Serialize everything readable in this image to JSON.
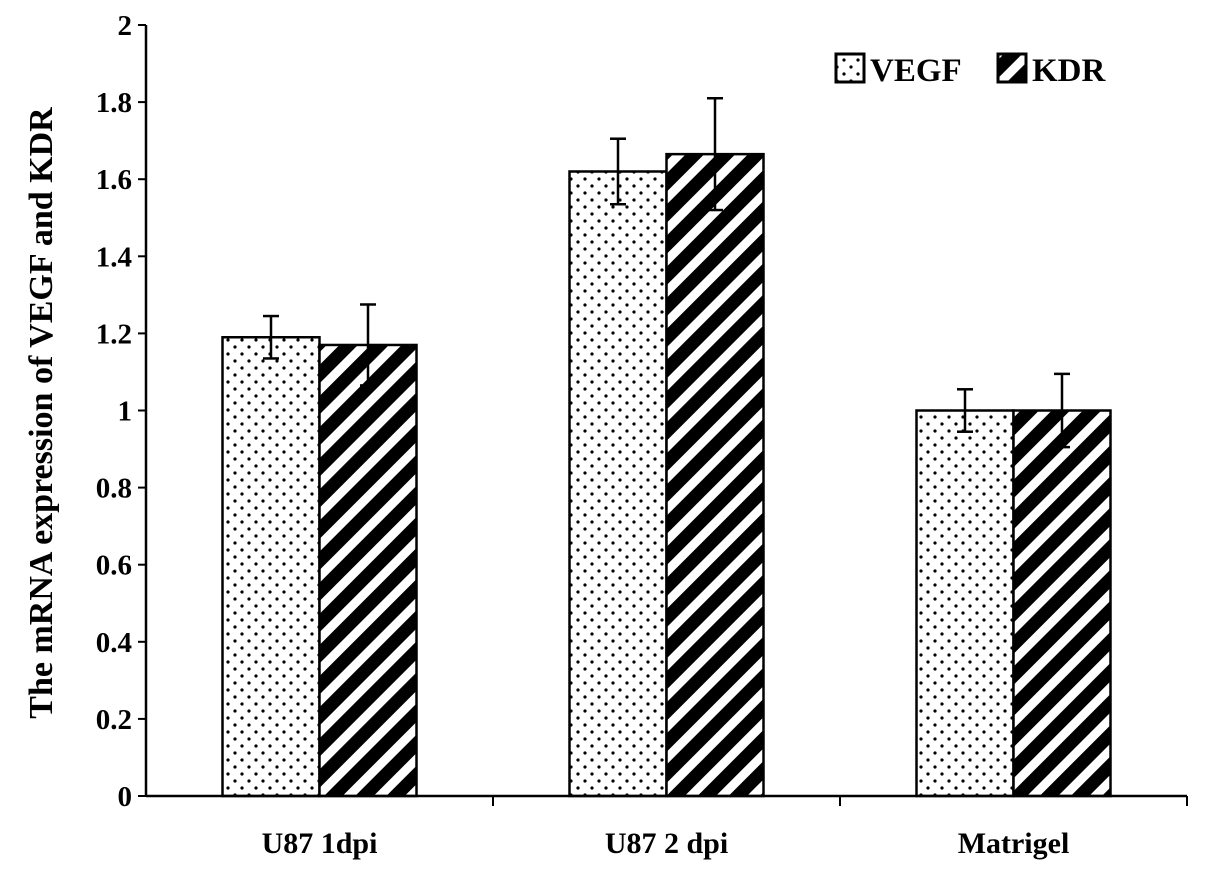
{
  "chart_data": {
    "type": "bar",
    "title": "",
    "xlabel": "",
    "ylabel": "The mRNA expression of VEGF and KDR",
    "ylim": [
      0,
      2
    ],
    "yticks": [
      0,
      0.2,
      0.4,
      0.6,
      0.8,
      1,
      1.2,
      1.4,
      1.6,
      1.8,
      2
    ],
    "ytick_labels": [
      "0",
      "0.2",
      "0.4",
      "0.6",
      "0.8",
      "1",
      "1.2",
      "1.4",
      "1.6",
      "1.8",
      "2"
    ],
    "categories": [
      "U87 1dpi",
      "U87 2 dpi",
      "Matrigel"
    ],
    "series": [
      {
        "name": "VEGF",
        "values": [
          1.19,
          1.62,
          1.0
        ],
        "errors": [
          0.055,
          0.085,
          0.055
        ],
        "pattern": "dots"
      },
      {
        "name": "KDR",
        "values": [
          1.17,
          1.665,
          1.0
        ],
        "errors": [
          0.105,
          0.145,
          0.095
        ],
        "pattern": "stripes"
      }
    ],
    "legend_position": "top-right",
    "grid": false
  }
}
